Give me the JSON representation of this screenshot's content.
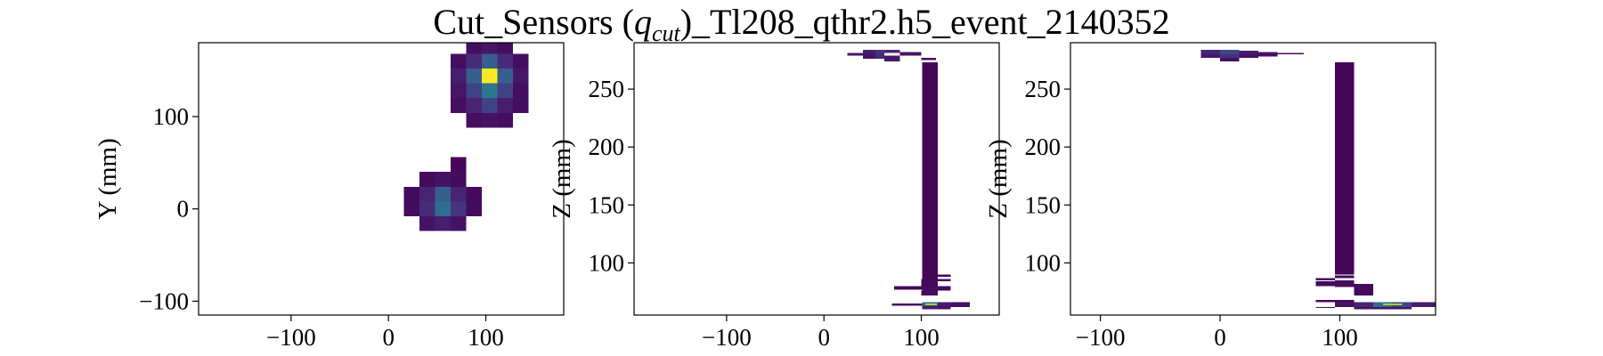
{
  "figure": {
    "title_main": "Cut_Sensors (",
    "title_q": "q",
    "title_sub": "cut",
    "title_tail": ")_Tl208_qthr2.h5_event_2140352"
  },
  "colormap": {
    "name": "viridis",
    "stops": [
      "#440154",
      "#482878",
      "#3e4989",
      "#31688e",
      "#26828e",
      "#1f9e89",
      "#35b779",
      "#6ece58",
      "#b5de2b",
      "#fde725"
    ]
  },
  "chart_data": [
    {
      "type": "heatmap",
      "panel": "xy",
      "xlabel": "",
      "ylabel": "Y (mm)",
      "xlim": [
        -195,
        180
      ],
      "ylim": [
        -115,
        180
      ],
      "xticks": [
        -100,
        0,
        100
      ],
      "yticks": [
        -100,
        0,
        100
      ],
      "xtick_labels": [
        "−100",
        "0",
        "100"
      ],
      "ytick_labels": [
        "−100",
        "0",
        "100"
      ],
      "cell_size": [
        16,
        16
      ],
      "cells": [
        [
          88,
          176,
          0.04
        ],
        [
          104,
          176,
          0.06
        ],
        [
          120,
          176,
          0.04
        ],
        [
          72,
          160,
          0.04
        ],
        [
          88,
          160,
          0.12
        ],
        [
          104,
          160,
          0.3
        ],
        [
          120,
          160,
          0.12
        ],
        [
          136,
          160,
          0.04
        ],
        [
          72,
          144,
          0.08
        ],
        [
          88,
          144,
          0.3
        ],
        [
          104,
          144,
          1.0
        ],
        [
          120,
          144,
          0.3
        ],
        [
          136,
          144,
          0.06
        ],
        [
          72,
          128,
          0.06
        ],
        [
          88,
          128,
          0.2
        ],
        [
          104,
          128,
          0.4
        ],
        [
          120,
          128,
          0.2
        ],
        [
          136,
          128,
          0.04
        ],
        [
          72,
          112,
          0.04
        ],
        [
          88,
          112,
          0.1
        ],
        [
          104,
          112,
          0.2
        ],
        [
          120,
          112,
          0.08
        ],
        [
          136,
          112,
          0.04
        ],
        [
          88,
          96,
          0.04
        ],
        [
          104,
          96,
          0.05
        ],
        [
          120,
          96,
          0.04
        ],
        [
          72,
          48,
          0.02
        ],
        [
          40,
          32,
          0.03
        ],
        [
          56,
          32,
          0.05
        ],
        [
          72,
          32,
          0.03
        ],
        [
          24,
          16,
          0.03
        ],
        [
          40,
          16,
          0.1
        ],
        [
          56,
          16,
          0.3
        ],
        [
          72,
          16,
          0.1
        ],
        [
          88,
          16,
          0.03
        ],
        [
          24,
          0,
          0.03
        ],
        [
          40,
          0,
          0.12
        ],
        [
          56,
          0,
          0.35
        ],
        [
          72,
          0,
          0.15
        ],
        [
          88,
          0,
          0.03
        ],
        [
          40,
          -16,
          0.05
        ],
        [
          56,
          -16,
          0.08
        ],
        [
          72,
          -16,
          0.05
        ]
      ]
    },
    {
      "type": "heatmap",
      "panel": "xz",
      "xlabel": "",
      "ylabel": "Z (mm)",
      "xlim": [
        -195,
        180
      ],
      "ylim": [
        55,
        290
      ],
      "xticks": [
        -100,
        0,
        100
      ],
      "yticks": [
        100,
        150,
        200,
        250
      ],
      "xtick_labels": [
        "−100",
        "0",
        "100"
      ],
      "ytick_labels": [
        "100",
        "150",
        "200",
        "250"
      ],
      "rects": [
        [
          40,
          53,
          281,
          284,
          0.08
        ],
        [
          53,
          62,
          281,
          284,
          0.15
        ],
        [
          62,
          78,
          281,
          284,
          0.1
        ],
        [
          78,
          100,
          279,
          282,
          0.05
        ],
        [
          24,
          40,
          279,
          281,
          0.06
        ],
        [
          40,
          53,
          276,
          281,
          0.05
        ],
        [
          53,
          62,
          276,
          281,
          0.12
        ],
        [
          62,
          78,
          274,
          279,
          0.06
        ],
        [
          100,
          115,
          275,
          277,
          0.02
        ],
        [
          101,
          117,
          86,
          273,
          0.01
        ],
        [
          100,
          117,
          80,
          86,
          0.02
        ],
        [
          117,
          130,
          88,
          90,
          0.02
        ],
        [
          117,
          130,
          84,
          86,
          0.02
        ],
        [
          72,
          101,
          77,
          80,
          0.02
        ],
        [
          101,
          130,
          76,
          80,
          0.03
        ],
        [
          100,
          117,
          72,
          76,
          0.03
        ],
        [
          70,
          101,
          63,
          65,
          0.04
        ],
        [
          101,
          117,
          63,
          66,
          0.35
        ],
        [
          117,
          130,
          63,
          66,
          0.08
        ],
        [
          130,
          150,
          62,
          66,
          0.05
        ],
        [
          101,
          117,
          60,
          63,
          0.08
        ],
        [
          117,
          130,
          60,
          63,
          0.06
        ],
        [
          104,
          116,
          63.6,
          65,
          0.85
        ]
      ]
    },
    {
      "type": "heatmap",
      "panel": "yz",
      "xlabel": "",
      "ylabel": "Z (mm)",
      "xlim": [
        -125,
        180
      ],
      "ylim": [
        55,
        290
      ],
      "xticks": [
        -100,
        0,
        100
      ],
      "yticks": [
        100,
        150,
        200,
        250
      ],
      "xtick_labels": [
        "−100",
        "0",
        "100"
      ],
      "ytick_labels": [
        "100",
        "150",
        "200",
        "250"
      ],
      "rects": [
        [
          -16,
          0,
          280,
          284,
          0.1
        ],
        [
          0,
          16,
          280,
          284,
          0.22
        ],
        [
          16,
          32,
          279,
          283,
          0.08
        ],
        [
          32,
          48,
          278,
          282,
          0.04
        ],
        [
          -16,
          0,
          277,
          280,
          0.06
        ],
        [
          0,
          16,
          276,
          280,
          0.14
        ],
        [
          16,
          32,
          277,
          280,
          0.05
        ],
        [
          48,
          70,
          280,
          281,
          0.02
        ],
        [
          0,
          16,
          274,
          277,
          0.04
        ],
        [
          96,
          112,
          90,
          273,
          0.01
        ],
        [
          80,
          96,
          85,
          87,
          0.02
        ],
        [
          96,
          112,
          87,
          89,
          0.02
        ],
        [
          80,
          96,
          80,
          84,
          0.02
        ],
        [
          96,
          112,
          79,
          85,
          0.03
        ],
        [
          112,
          128,
          78,
          82,
          0.02
        ],
        [
          112,
          128,
          72,
          78,
          0.02
        ],
        [
          80,
          96,
          66,
          68,
          0.02
        ],
        [
          96,
          112,
          66,
          68,
          0.02
        ],
        [
          96,
          112,
          62,
          66,
          0.05
        ],
        [
          112,
          128,
          62,
          66,
          0.1
        ],
        [
          128,
          144,
          62,
          66,
          0.35
        ],
        [
          144,
          160,
          62,
          66,
          0.2
        ],
        [
          160,
          180,
          62,
          66,
          0.08
        ],
        [
          80,
          96,
          61,
          62,
          0.02
        ],
        [
          112,
          160,
          60,
          62,
          0.05
        ],
        [
          136,
          152,
          63.4,
          64.8,
          0.85
        ]
      ]
    }
  ]
}
